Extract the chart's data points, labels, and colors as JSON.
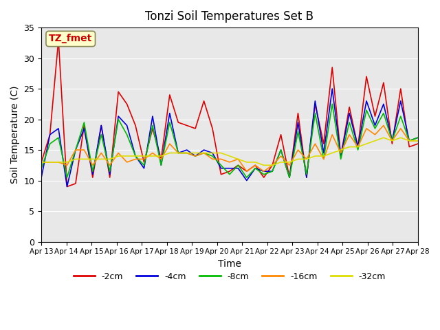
{
  "title": "Tonzi Soil Temperatures Set B",
  "xlabel": "Time",
  "ylabel": "Soil Temperature (C)",
  "ylim": [
    0,
    35
  ],
  "yticks": [
    0,
    5,
    10,
    15,
    20,
    25,
    30,
    35
  ],
  "background_color": "#e8e8e8",
  "legend_label": "TZ_fmet",
  "legend_label_color": "#cc0000",
  "legend_box_color": "#ffffcc",
  "x_labels": [
    "Apr 13",
    "Apr 14",
    "Apr 15",
    "Apr 16",
    "Apr 17",
    "Apr 18",
    "Apr 19",
    "Apr 20",
    "Apr 21",
    "Apr 22",
    "Apr 23",
    "Apr 24",
    "Apr 25",
    "Apr 26",
    "Apr 27",
    "Apr 28"
  ],
  "series": {
    "-2cm": {
      "color": "#dd0000",
      "data": [
        13.0,
        17.5,
        33.0,
        9.0,
        9.5,
        19.0,
        10.5,
        19.0,
        10.5,
        24.5,
        22.5,
        19.0,
        13.0,
        18.5,
        13.5,
        24.0,
        19.5,
        19.0,
        18.5,
        23.0,
        18.5,
        11.0,
        11.5,
        12.5,
        11.5,
        12.5,
        10.5,
        12.5,
        17.5,
        10.5,
        21.0,
        10.5,
        22.5,
        16.0,
        28.5,
        14.0,
        22.0,
        15.5,
        27.0,
        20.5,
        26.0,
        16.0,
        25.0,
        15.5,
        16.0
      ]
    },
    "-4cm": {
      "color": "#0000dd",
      "data": [
        10.5,
        17.5,
        18.5,
        9.0,
        15.0,
        18.5,
        11.0,
        19.0,
        11.0,
        20.5,
        19.0,
        14.0,
        12.0,
        20.5,
        12.5,
        21.0,
        14.5,
        15.0,
        14.0,
        15.0,
        14.5,
        12.0,
        12.0,
        12.0,
        10.0,
        12.0,
        11.5,
        11.5,
        15.0,
        10.5,
        19.5,
        10.5,
        23.0,
        14.5,
        25.0,
        14.0,
        21.0,
        15.5,
        23.0,
        19.0,
        22.5,
        16.5,
        23.0,
        16.5,
        17.0
      ]
    },
    "-8cm": {
      "color": "#00bb00",
      "data": [
        12.0,
        16.0,
        17.0,
        10.5,
        15.0,
        19.5,
        11.5,
        17.5,
        11.5,
        20.0,
        17.5,
        14.0,
        12.5,
        19.0,
        12.5,
        19.5,
        14.5,
        14.5,
        14.0,
        14.5,
        14.0,
        12.5,
        11.0,
        12.5,
        10.5,
        12.0,
        11.0,
        11.5,
        15.0,
        10.5,
        18.0,
        11.0,
        21.0,
        13.5,
        22.5,
        13.5,
        19.5,
        15.0,
        21.5,
        18.5,
        21.0,
        16.5,
        20.5,
        16.5,
        17.0
      ]
    },
    "-16cm": {
      "color": "#ff8800",
      "data": [
        13.0,
        13.0,
        13.0,
        12.5,
        15.0,
        15.0,
        12.5,
        14.5,
        12.5,
        14.5,
        13.0,
        13.5,
        13.5,
        14.5,
        13.5,
        16.0,
        14.5,
        14.5,
        14.0,
        14.5,
        13.5,
        13.5,
        13.0,
        13.5,
        11.5,
        12.5,
        11.5,
        12.5,
        14.0,
        12.5,
        15.0,
        13.5,
        16.0,
        13.5,
        17.5,
        14.5,
        17.5,
        15.5,
        18.5,
        17.5,
        19.0,
        16.5,
        18.5,
        16.5,
        16.5
      ]
    },
    "-32cm": {
      "color": "#dddd00",
      "data": [
        13.0,
        13.0,
        13.0,
        13.0,
        13.5,
        13.5,
        13.5,
        13.5,
        13.5,
        14.0,
        14.0,
        14.0,
        14.0,
        14.0,
        14.0,
        14.5,
        14.5,
        14.5,
        14.5,
        14.5,
        14.5,
        14.5,
        14.0,
        13.5,
        13.0,
        13.0,
        12.5,
        12.5,
        13.0,
        13.0,
        13.5,
        13.5,
        14.0,
        14.0,
        14.5,
        15.0,
        15.5,
        15.5,
        16.0,
        16.5,
        17.0,
        16.5,
        17.0,
        16.5,
        16.5
      ]
    }
  },
  "series_order": [
    "-2cm",
    "-4cm",
    "-8cm",
    "-16cm",
    "-32cm"
  ],
  "legend_colors": {
    "-2cm": "#dd0000",
    "-4cm": "#0000dd",
    "-8cm": "#00bb00",
    "-16cm": "#ff8800",
    "-32cm": "#dddd00"
  }
}
